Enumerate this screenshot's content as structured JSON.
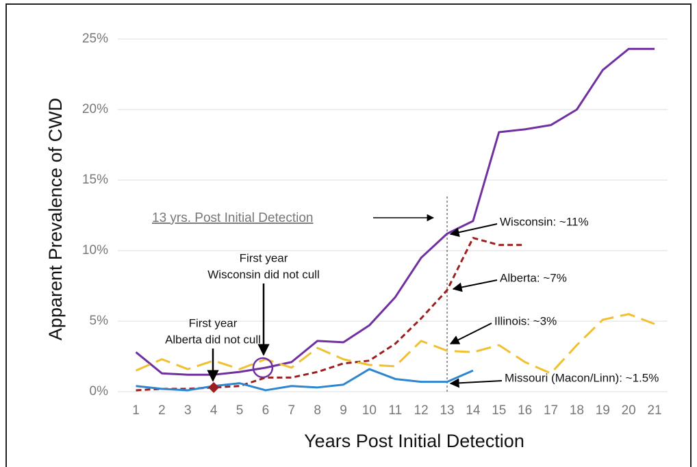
{
  "chart_data": {
    "type": "line",
    "x_label": "Years Post Initial Detection",
    "y_label": "Apparent Prevalence of CWD",
    "x": [
      1,
      2,
      3,
      4,
      5,
      6,
      7,
      8,
      9,
      10,
      11,
      12,
      13,
      14,
      15,
      16,
      17,
      18,
      19,
      20,
      21
    ],
    "xlim": [
      0.3,
      21.5
    ],
    "xticks": [
      1,
      2,
      3,
      4,
      5,
      6,
      7,
      8,
      9,
      10,
      11,
      12,
      13,
      14,
      15,
      16,
      17,
      18,
      19,
      20,
      21
    ],
    "ylim": [
      0,
      25
    ],
    "yticks": [
      {
        "value": 0,
        "label": "0%"
      },
      {
        "value": 5,
        "label": "5%"
      },
      {
        "value": 10,
        "label": "10%"
      },
      {
        "value": 15,
        "label": "15%"
      },
      {
        "value": 20,
        "label": "20%"
      },
      {
        "value": 25,
        "label": "25%"
      }
    ],
    "grid": true,
    "vline": 13,
    "vline_label": "13 yrs. Post Initial Detection",
    "series": [
      {
        "name": "Wisconsin: ~11%",
        "color": "#7030a0",
        "dash": "none",
        "values": [
          2.8,
          1.3,
          1.2,
          1.2,
          1.4,
          1.7,
          2.1,
          3.6,
          3.5,
          4.7,
          6.7,
          9.5,
          11.2,
          12.1,
          18.4,
          18.6,
          18.9,
          20,
          22.8,
          24.3,
          24.3
        ]
      },
      {
        "name": "Alberta: ~7%",
        "color": "#9b1f1f",
        "dash": "8,5",
        "values": [
          0.1,
          0.2,
          0.2,
          0.3,
          0.4,
          1.0,
          1.0,
          1.4,
          2.0,
          2.2,
          3.4,
          5.2,
          7.2,
          10.9,
          10.4,
          10.4,
          null,
          null,
          null,
          null,
          null
        ]
      },
      {
        "name": "Illinois: ~3%",
        "color": "#f0c030",
        "dash": "22,10",
        "values": [
          1.5,
          2.3,
          1.6,
          2.2,
          1.6,
          2.3,
          1.7,
          3.1,
          2.3,
          1.9,
          1.8,
          3.6,
          2.9,
          2.8,
          3.3,
          2.1,
          1.3,
          3.3,
          5.1,
          5.5,
          4.8
        ]
      },
      {
        "name": "Missouri (Macon/Linn): ~1.5%",
        "color": "#2e86d0",
        "dash": "none",
        "values": [
          0.4,
          0.2,
          0.1,
          0.4,
          0.6,
          0.1,
          0.4,
          0.3,
          0.5,
          1.6,
          0.9,
          0.7,
          0.7,
          1.5,
          null,
          null,
          null,
          null,
          null,
          null,
          null
        ]
      }
    ],
    "annotations": [
      {
        "lines": [
          "First year",
          "Wisconsin did not cull"
        ]
      },
      {
        "lines": [
          "First year",
          "Alberta did not cull"
        ]
      }
    ]
  }
}
